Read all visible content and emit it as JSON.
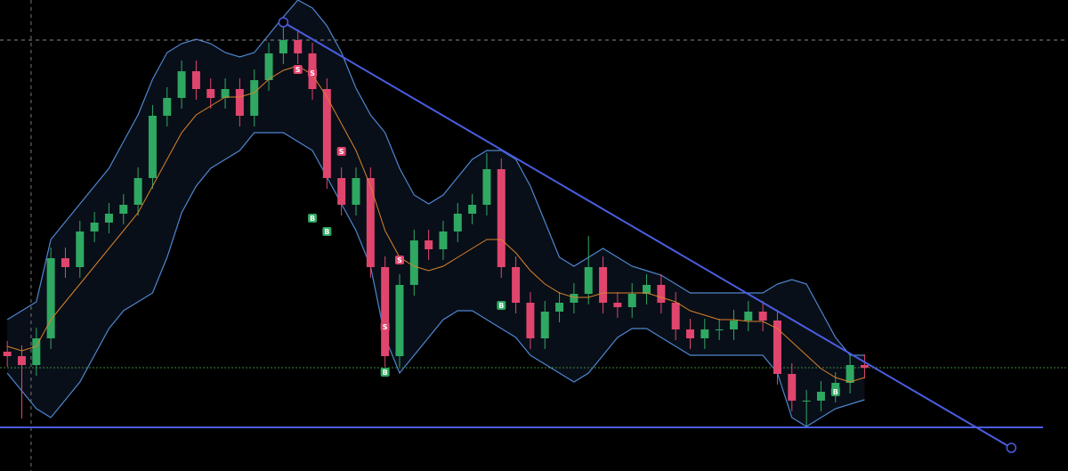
{
  "chart_data": {
    "type": "candlestick",
    "xlim": [
      -0.5,
      73
    ],
    "ylim": [
      0,
      529
    ],
    "up_color": "#2fa862",
    "down_color": "#e0456e",
    "open": [
      134,
      129,
      119,
      149,
      239,
      229,
      269,
      279,
      289,
      299,
      329,
      399,
      419,
      449,
      429,
      419,
      429,
      399,
      439,
      469,
      484,
      469,
      429,
      329,
      299,
      329,
      229,
      129,
      209,
      259,
      249,
      269,
      289,
      299,
      339,
      229,
      189,
      149,
      179,
      189,
      199,
      229,
      189,
      184,
      199,
      209,
      189,
      159,
      149,
      159,
      159,
      169,
      179,
      169,
      109,
      79,
      79,
      89,
      99,
      119
    ],
    "high": [
      146,
      141,
      161,
      251,
      251,
      281,
      291,
      301,
      311,
      341,
      411,
      431,
      461,
      461,
      441,
      441,
      441,
      451,
      481,
      504,
      496,
      481,
      441,
      341,
      341,
      341,
      241,
      221,
      271,
      271,
      281,
      301,
      311,
      357,
      351,
      241,
      201,
      191,
      201,
      211,
      264,
      241,
      201,
      211,
      221,
      221,
      201,
      171,
      171,
      171,
      181,
      191,
      191,
      181,
      121,
      91,
      101,
      111,
      131,
      131
    ],
    "low": [
      117,
      59,
      107,
      137,
      217,
      217,
      257,
      267,
      277,
      287,
      317,
      387,
      407,
      417,
      407,
      407,
      387,
      387,
      427,
      457,
      457,
      417,
      317,
      287,
      287,
      217,
      117,
      117,
      197,
      237,
      237,
      257,
      277,
      287,
      217,
      177,
      137,
      137,
      167,
      177,
      187,
      177,
      172,
      172,
      187,
      177,
      147,
      137,
      137,
      147,
      147,
      157,
      157,
      97,
      67,
      49,
      67,
      77,
      87,
      104
    ],
    "close": [
      129,
      119,
      149,
      239,
      229,
      269,
      279,
      289,
      299,
      329,
      399,
      419,
      449,
      429,
      419,
      429,
      399,
      439,
      469,
      484,
      469,
      429,
      329,
      299,
      329,
      229,
      129,
      209,
      259,
      249,
      269,
      289,
      299,
      339,
      229,
      189,
      149,
      179,
      189,
      199,
      229,
      189,
      184,
      199,
      209,
      189,
      159,
      149,
      159,
      159,
      169,
      179,
      169,
      109,
      79,
      79,
      89,
      99,
      119,
      116
    ],
    "ma": {
      "color": "#d9822b",
      "values": [
        140,
        135,
        140,
        170,
        190,
        210,
        230,
        250,
        270,
        290,
        320,
        350,
        380,
        400,
        410,
        420,
        420,
        425,
        440,
        450,
        455,
        445,
        420,
        390,
        360,
        320,
        270,
        240,
        230,
        225,
        230,
        240,
        250,
        260,
        260,
        245,
        225,
        210,
        200,
        195,
        195,
        200,
        200,
        200,
        200,
        195,
        190,
        180,
        175,
        170,
        170,
        168,
        168,
        160,
        145,
        130,
        115,
        105,
        100,
        105
      ]
    },
    "bands": {
      "color": "#4f86d0",
      "upper": [
        170,
        180,
        190,
        260,
        280,
        300,
        320,
        340,
        370,
        400,
        440,
        470,
        480,
        485,
        480,
        470,
        465,
        470,
        490,
        510,
        529,
        520,
        500,
        470,
        430,
        400,
        380,
        340,
        310,
        300,
        310,
        330,
        350,
        360,
        360,
        350,
        320,
        280,
        240,
        230,
        240,
        250,
        240,
        230,
        225,
        220,
        210,
        200,
        200,
        200,
        200,
        200,
        200,
        210,
        215,
        210,
        180,
        150,
        130,
        130
      ],
      "lower": [
        110,
        90,
        70,
        60,
        80,
        100,
        130,
        160,
        180,
        190,
        200,
        240,
        290,
        320,
        340,
        350,
        360,
        380,
        380,
        380,
        370,
        360,
        330,
        300,
        270,
        230,
        150,
        110,
        130,
        150,
        170,
        180,
        180,
        170,
        160,
        150,
        130,
        120,
        110,
        100,
        110,
        130,
        150,
        160,
        160,
        150,
        140,
        130,
        130,
        130,
        130,
        130,
        130,
        110,
        60,
        50,
        60,
        70,
        75,
        80
      ]
    },
    "signals": [
      {
        "label": "S",
        "index": 20,
        "value": 451
      },
      {
        "label": "S",
        "index": 21,
        "value": 447
      },
      {
        "label": "S",
        "index": 23,
        "value": 359
      },
      {
        "label": "S",
        "index": 27,
        "value": 237
      },
      {
        "label": "S",
        "index": 26,
        "value": 162
      },
      {
        "label": "B",
        "index": 21,
        "value": 284
      },
      {
        "label": "B",
        "index": 22,
        "value": 269
      },
      {
        "label": "B",
        "index": 26,
        "value": 111
      },
      {
        "label": "B",
        "index": 34,
        "value": 186
      },
      {
        "label": "B",
        "index": 57,
        "value": 89
      }
    ],
    "trendline": {
      "color": "#4a5de0",
      "x": [
        19,
        69.1
      ],
      "y": [
        504,
        26
      ]
    },
    "support": {
      "color": "#4a5de0",
      "y": 49
    },
    "level": {
      "color": "#3a8a3a",
      "y": 116
    },
    "crosshair": {
      "x": 1.64,
      "y": 484
    }
  }
}
